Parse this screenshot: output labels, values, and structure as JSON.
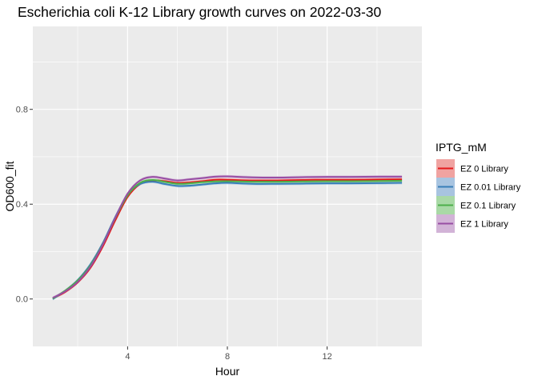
{
  "chart_data": {
    "type": "line",
    "title": "Escherichia coli K-12 Library growth curves on 2022-03-30",
    "xlabel": "Hour",
    "ylabel": "OD600_fit",
    "xlim": [
      0.2,
      15.8
    ],
    "ylim": [
      -0.2,
      1.15
    ],
    "x_ticks": [
      4,
      8,
      12
    ],
    "x_tick_labels": [
      "4",
      "8",
      "12"
    ],
    "y_ticks": [
      0.0,
      0.4,
      0.8
    ],
    "y_tick_labels": [
      "0.0",
      "0.4",
      "0.8"
    ],
    "grid": true,
    "legend_title": "IPTG_mM",
    "legend_position": "right",
    "x": [
      1,
      1.5,
      2,
      2.5,
      3,
      3.5,
      4,
      4.5,
      5,
      5.5,
      6,
      6.5,
      7,
      7.5,
      8,
      9,
      10,
      11,
      12,
      13,
      14,
      15
    ],
    "series": [
      {
        "name": "EZ 0 Library",
        "color": "#e41a1c",
        "band": "#f0a3a1",
        "values": [
          0.003,
          0.03,
          0.07,
          0.13,
          0.22,
          0.33,
          0.43,
          0.485,
          0.5,
          0.497,
          0.49,
          0.492,
          0.497,
          0.503,
          0.503,
          0.5,
          0.5,
          0.502,
          0.503,
          0.503,
          0.504,
          0.505
        ]
      },
      {
        "name": "EZ 0.01 Library",
        "color": "#377eb8",
        "band": "#a8c4e0",
        "values": [
          0.0,
          0.035,
          0.08,
          0.145,
          0.235,
          0.345,
          0.44,
          0.485,
          0.495,
          0.485,
          0.477,
          0.478,
          0.483,
          0.488,
          0.49,
          0.486,
          0.486,
          0.487,
          0.488,
          0.488,
          0.489,
          0.49
        ]
      },
      {
        "name": "EZ 0.1 Library",
        "color": "#4daf4a",
        "band": "#a9d9a6",
        "values": [
          0.002,
          0.035,
          0.078,
          0.14,
          0.23,
          0.34,
          0.437,
          0.49,
          0.502,
          0.494,
          0.486,
          0.488,
          0.493,
          0.496,
          0.497,
          0.495,
          0.495,
          0.496,
          0.497,
          0.497,
          0.498,
          0.499
        ]
      },
      {
        "name": "EZ 1 Library",
        "color": "#984ea3",
        "band": "#d2b3d7",
        "values": [
          0.005,
          0.032,
          0.072,
          0.135,
          0.228,
          0.342,
          0.445,
          0.5,
          0.515,
          0.508,
          0.5,
          0.505,
          0.51,
          0.516,
          0.517,
          0.513,
          0.512,
          0.514,
          0.515,
          0.515,
          0.516,
          0.516
        ]
      }
    ]
  }
}
